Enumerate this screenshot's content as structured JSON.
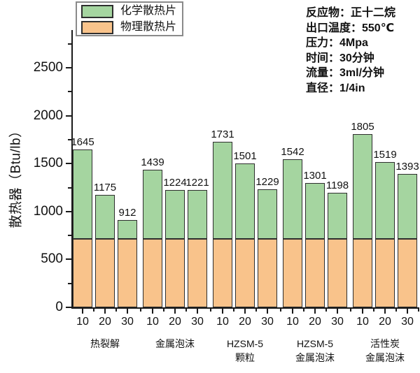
{
  "chart_data": {
    "type": "bar",
    "stacked": true,
    "title": "",
    "xlabel": "",
    "ylabel": "散热器（Btu/lb）",
    "ylim": [
      0,
      2890
    ],
    "yticks_major": [
      0,
      500,
      1000,
      1500,
      2000,
      2500
    ],
    "yticks_minor": [
      250,
      750,
      1250,
      1750,
      2250,
      2750
    ],
    "grid": false,
    "legend_position": "top-left",
    "bar_tick_labels": [
      "10",
      "20",
      "30"
    ],
    "groups": [
      {
        "label_lines": [
          "热裂解"
        ],
        "totals": [
          1645,
          1175,
          912
        ]
      },
      {
        "label_lines": [
          "金属泡沫"
        ],
        "totals": [
          1439,
          1224,
          1221
        ]
      },
      {
        "label_lines": [
          "HZSM-5",
          "颗粒"
        ],
        "totals": [
          1731,
          1501,
          1229
        ]
      },
      {
        "label_lines": [
          "HZSM-5",
          "金属泡沫"
        ],
        "totals": [
          1542,
          1301,
          1198
        ]
      },
      {
        "label_lines": [
          "活性炭",
          "金属泡沫"
        ],
        "totals": [
          1805,
          1519,
          1393
        ]
      }
    ],
    "series": [
      {
        "name": "化学散热片",
        "color": "#a5d5a0",
        "segment": "top"
      },
      {
        "name": "物理散热片",
        "color": "#f9c38b",
        "segment": "base",
        "value_per_bar": 712
      }
    ],
    "bar_border_color": "#2e2e2e"
  },
  "annotation": {
    "lines": [
      "反应物：正十二烷",
      "出口温度：550℃",
      "压力：4Mpa",
      "时间：30分钟",
      "流量：3ml/分钟",
      "直径：1/4in"
    ]
  }
}
